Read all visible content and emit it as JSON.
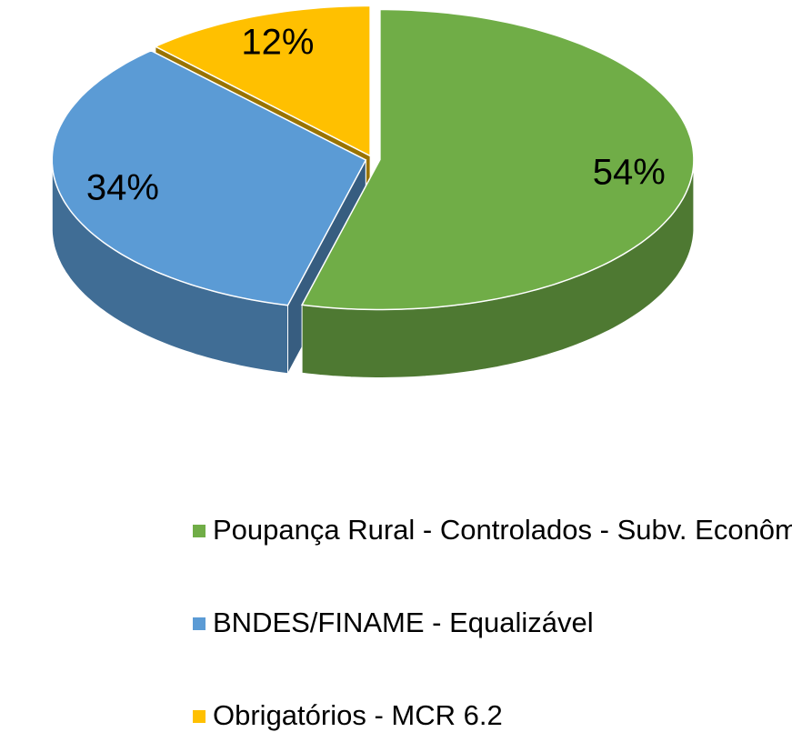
{
  "chart_data": {
    "type": "pie",
    "three_d": true,
    "categories": [
      "Poupança Rural - Controlados - Subv. Econômica",
      "BNDES/FINAME - Equalizável",
      "Obrigatórios - MCR 6.2"
    ],
    "values": [
      54,
      34,
      12
    ],
    "value_labels": [
      "54%",
      "34%",
      "12%"
    ],
    "colors": [
      "#70ad47",
      "#5b9bd5",
      "#ffc000"
    ],
    "legend": "bottom"
  }
}
